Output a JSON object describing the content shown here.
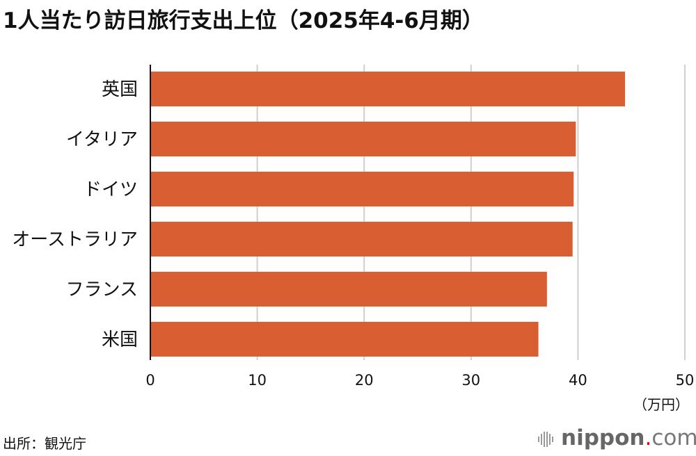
{
  "chart_data": {
    "type": "bar",
    "orientation": "horizontal",
    "title": "1人当たり訪日旅行支出上位（2025年4-6月期）",
    "categories": [
      "英国",
      "イタリア",
      "ドイツ",
      "オーストラリア",
      "フランス",
      "米国"
    ],
    "values": [
      44.4,
      39.8,
      39.6,
      39.5,
      37.1,
      36.3
    ],
    "xlabel": "（万円）",
    "ylabel": "",
    "xlim": [
      0,
      50
    ],
    "xticks": [
      "0",
      "10",
      "20",
      "30",
      "40",
      "50"
    ],
    "grid": "vertical",
    "bar_color": "#d95f33"
  },
  "source": "出所：観光庁",
  "logo": {
    "name": "nippon",
    "dot": ".",
    "suffix": "com"
  }
}
